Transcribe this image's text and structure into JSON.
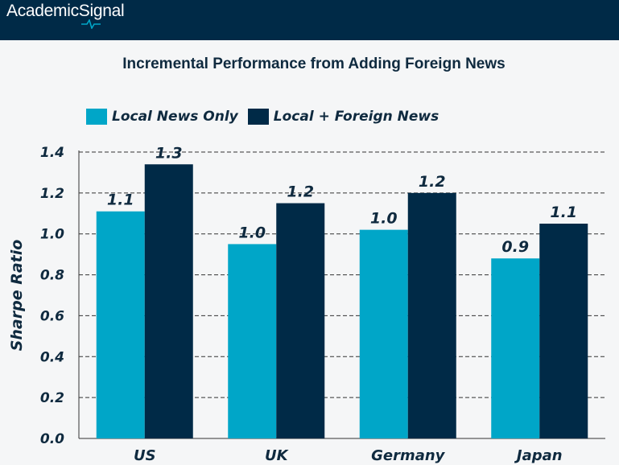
{
  "header": {
    "brand": "AcademicSignal",
    "background": "#002a47"
  },
  "chart_data": {
    "type": "bar",
    "title": "Incremental Performance from Adding Foreign News",
    "xlabel": "",
    "ylabel": "Sharpe Ratio",
    "ylim": [
      0,
      1.4
    ],
    "yticks": [
      "0.0",
      "0.2",
      "0.4",
      "0.6",
      "0.8",
      "1.0",
      "1.2",
      "1.4"
    ],
    "grid": true,
    "legend_position": "top-left",
    "categories": [
      "US",
      "UK",
      "Germany",
      "Japan"
    ],
    "series": [
      {
        "name": "Local News Only",
        "color": "#00a6c8",
        "values": [
          1.11,
          0.95,
          1.02,
          0.88
        ],
        "labels": [
          "1.1",
          "1.0",
          "1.0",
          "0.9"
        ]
      },
      {
        "name": "Local + Foreign News",
        "color": "#002a47",
        "values": [
          1.34,
          1.15,
          1.2,
          1.05
        ],
        "labels": [
          "1.3",
          "1.2",
          "1.2",
          "1.1"
        ]
      }
    ]
  }
}
